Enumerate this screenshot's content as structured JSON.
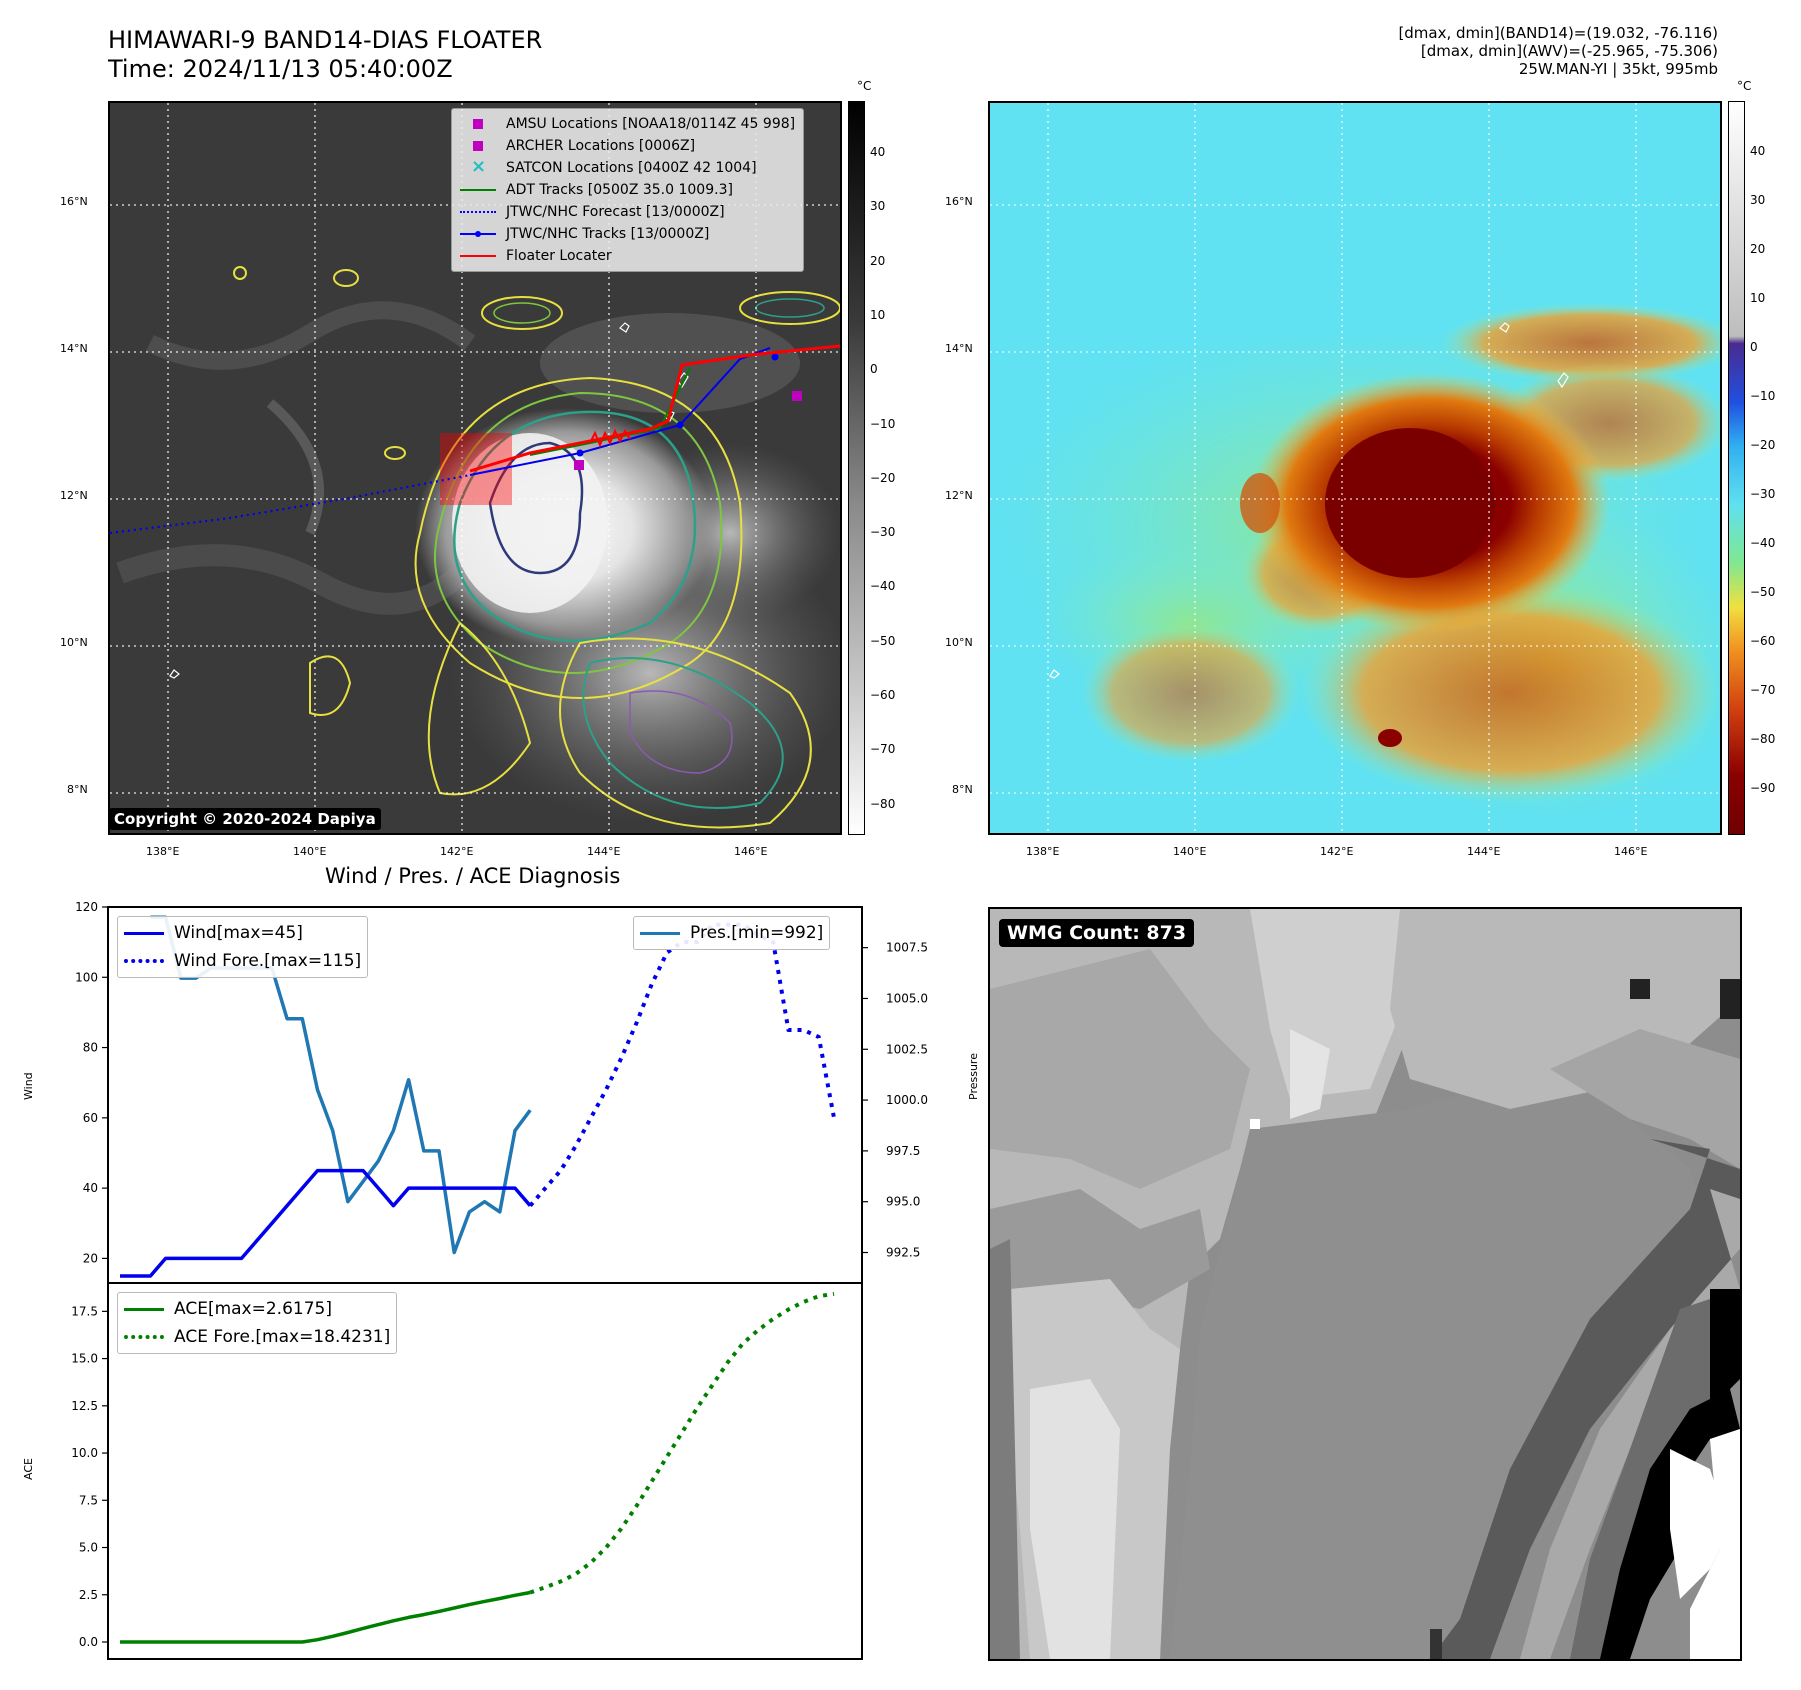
{
  "header": {
    "title_line1": "HIMAWARI-9 BAND14-DIAS FLOATER",
    "title_line2": "Time: 2024/11/13 05:40:00Z",
    "info_line1": "[dmax, dmin](BAND14)=(19.032, -76.116)",
    "info_line2": "[dmax, dmin](AWV)=(-25.965, -75.306)",
    "info_line3": "25W.MAN-YI | 35kt, 995mb"
  },
  "map_axes": {
    "lat_labels": [
      "16°N",
      "14°N",
      "12°N",
      "10°N",
      "8°N"
    ],
    "lon_labels": [
      "138°E",
      "140°E",
      "142°E",
      "144°E",
      "146°E"
    ]
  },
  "colorbar_left": {
    "unit": "°C",
    "ticks": [
      "40",
      "30",
      "20",
      "10",
      "0",
      "−10",
      "−20",
      "−30",
      "−40",
      "−50",
      "−60",
      "−70",
      "−80"
    ]
  },
  "colorbar_right": {
    "unit": "°C",
    "ticks": [
      "40",
      "30",
      "20",
      "10",
      "0",
      "−10",
      "−20",
      "−30",
      "−40",
      "−50",
      "−60",
      "−70",
      "−80",
      "−90"
    ]
  },
  "legend_map": {
    "items": [
      {
        "label": "AMSU Locations [NOAA18/0114Z 45 998]",
        "color": "#c000c0",
        "style": "square"
      },
      {
        "label": "ARCHER Locations [0006Z]",
        "color": "#c000c0",
        "style": "square"
      },
      {
        "label": "SATCON Locations [0400Z 42 1004]",
        "color": "#20c0c0",
        "style": "x"
      },
      {
        "label": "ADT Tracks [0500Z 35.0 1009.3]",
        "color": "#008000",
        "style": "line"
      },
      {
        "label": "JTWC/NHC Forecast [13/0000Z]",
        "color": "#0000ff",
        "style": "dotted"
      },
      {
        "label": "JTWC/NHC Tracks [13/0000Z]",
        "color": "#0000ff",
        "style": "line-dot"
      },
      {
        "label": "Floater Locater",
        "color": "#ff0000",
        "style": "line"
      }
    ]
  },
  "copyright": "Copyright © 2020-2024 Dapiya",
  "wmg_label": "WMG Count: 873",
  "chart_data": [
    {
      "type": "line",
      "title": "Wind / Pres. / ACE Diagnosis",
      "ylabel": "Wind",
      "ylabel_right": "Pressure",
      "ylim": [
        13,
        120
      ],
      "ylim_right": [
        991.0,
        1009.5
      ],
      "yticks": [
        "120",
        "100",
        "80",
        "60",
        "40",
        "20"
      ],
      "yticks_right": [
        "1007.5",
        "1005.0",
        "1002.5",
        "1000.0",
        "997.5",
        "995.0",
        "992.5"
      ],
      "x_count": 48,
      "series": [
        {
          "name": "Wind[max=45]",
          "color": "#0000ee",
          "style": "solid",
          "axis": "left",
          "x": [
            0,
            2,
            3,
            4,
            5,
            6,
            7,
            8,
            9,
            10,
            11,
            12,
            13,
            14,
            15,
            16,
            17,
            18,
            19,
            20,
            21,
            22,
            23,
            24,
            25,
            26,
            27
          ],
          "values": [
            15,
            15,
            20,
            20,
            20,
            20,
            20,
            20,
            25,
            30,
            35,
            40,
            45,
            45,
            45,
            45,
            40,
            35,
            40,
            40,
            40,
            40,
            40,
            40,
            40,
            40,
            35
          ]
        },
        {
          "name": "Wind Fore.[max=115]",
          "color": "#0000ee",
          "style": "dotted",
          "axis": "left",
          "x": [
            27,
            28,
            29,
            30,
            31,
            32,
            33,
            34,
            35,
            36,
            37,
            38,
            39,
            40,
            41,
            42,
            43,
            44,
            45,
            46,
            47
          ],
          "values": [
            35,
            40,
            45,
            52,
            60,
            68,
            77,
            87,
            98,
            107,
            110,
            110,
            115,
            115,
            115,
            112,
            110,
            85,
            85,
            83,
            60
          ]
        },
        {
          "name": "Pres.[min=992]",
          "color": "#1f77b4",
          "style": "solid",
          "axis": "right",
          "x": [
            2,
            3,
            4,
            5,
            6,
            7,
            8,
            9,
            10,
            11,
            12,
            13,
            14,
            15,
            16,
            17,
            18,
            19,
            20,
            21,
            22,
            23,
            24,
            25,
            26,
            27
          ],
          "values": [
            1009,
            1009,
            1006,
            1006,
            1006.5,
            1006.5,
            1006.5,
            1006.5,
            1006.5,
            1004,
            1004,
            1000.5,
            998.5,
            995,
            996,
            997,
            998.5,
            1001,
            997.5,
            997.5,
            992.5,
            994.5,
            995,
            994.5,
            998.5,
            999.5
          ]
        }
      ]
    },
    {
      "type": "line",
      "ylabel": "ACE",
      "ylim": [
        -0.9,
        19.0
      ],
      "yticks": [
        "17.5",
        "15.0",
        "12.5",
        "10.0",
        "7.5",
        "5.0",
        "2.5",
        "0.0"
      ],
      "series": [
        {
          "name": "ACE[max=2.6175]",
          "color": "#008000",
          "style": "solid",
          "x": [
            0,
            12,
            13,
            14,
            15,
            16,
            17,
            18,
            19,
            20,
            21,
            22,
            23,
            24,
            25,
            26,
            27
          ],
          "values": [
            0,
            0,
            0.12,
            0.3,
            0.5,
            0.72,
            0.92,
            1.12,
            1.3,
            1.45,
            1.62,
            1.8,
            1.98,
            2.15,
            2.3,
            2.47,
            2.6175
          ]
        },
        {
          "name": "ACE Fore.[max=18.4231]",
          "color": "#008000",
          "style": "dotted",
          "x": [
            27,
            28,
            29,
            30,
            31,
            32,
            33,
            34,
            35,
            36,
            37,
            38,
            39,
            40,
            41,
            42,
            43,
            44,
            45,
            46,
            47
          ],
          "values": [
            2.6175,
            2.9,
            3.2,
            3.6,
            4.2,
            5.0,
            6.0,
            7.2,
            8.5,
            9.8,
            11.1,
            12.4,
            13.6,
            14.8,
            15.8,
            16.5,
            17.1,
            17.6,
            18.0,
            18.3,
            18.4231
          ]
        }
      ]
    }
  ]
}
